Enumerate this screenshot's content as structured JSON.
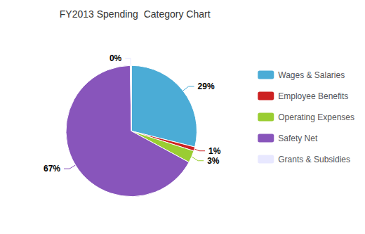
{
  "chart_data": {
    "type": "pie",
    "title": "FY2013 Spending  Category Chart",
    "categories": [
      "Wages & Salaries",
      "Employee Benefits",
      "Operating Expenses",
      "Safety Net",
      "Grants & Subsidies"
    ],
    "values": [
      29,
      1,
      3,
      67,
      0.3
    ],
    "value_labels": [
      "29%",
      "1%",
      "3%",
      "67%",
      "0%"
    ],
    "colors": [
      "#4BACD6",
      "#CC2222",
      "#9ACD32",
      "#8855BB",
      "#E8E8FF"
    ],
    "data_labels": true,
    "legend": "right"
  }
}
